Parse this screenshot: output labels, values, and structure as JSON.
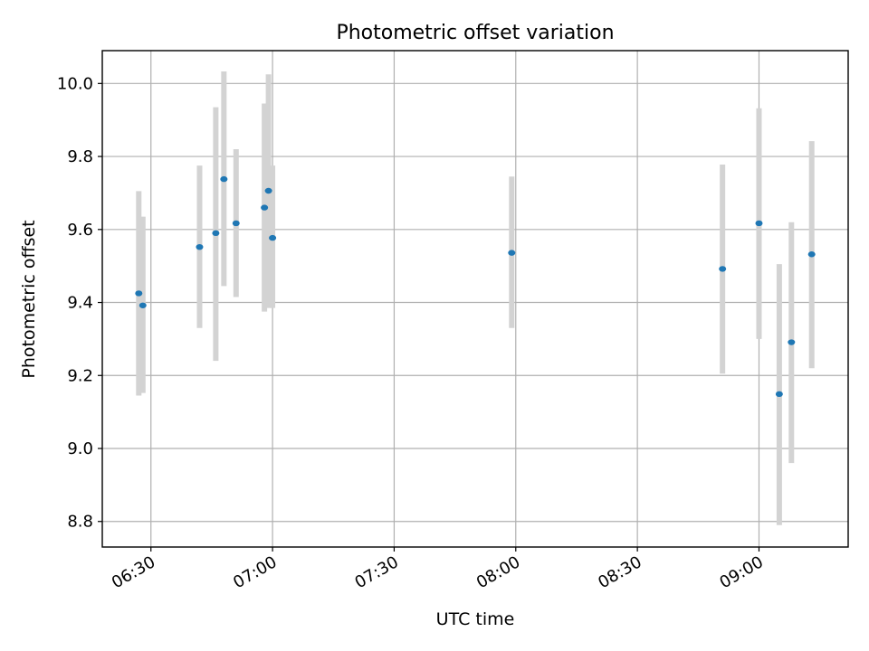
{
  "chart_data": {
    "type": "scatter",
    "title": "Photometric offset variation",
    "xlabel": "UTC time",
    "ylabel": "Photometric offset",
    "xlim": [
      "06:18",
      "09:22"
    ],
    "ylim": [
      8.73,
      10.09
    ],
    "x_ticks": [
      "06:30",
      "07:00",
      "07:30",
      "08:00",
      "08:30",
      "09:00"
    ],
    "y_ticks": [
      "8.8",
      "9.0",
      "9.2",
      "9.4",
      "9.6",
      "9.8",
      "10.0"
    ],
    "grid": true,
    "colors": {
      "point": "#1f77b4",
      "errorbar": "#d3d3d3"
    },
    "points": [
      {
        "time": "06:27",
        "y": 9.425,
        "err_low": 9.145,
        "err_high": 9.705
      },
      {
        "time": "06:28",
        "y": 9.392,
        "err_low": 9.152,
        "err_high": 9.635
      },
      {
        "time": "06:42",
        "y": 9.552,
        "err_low": 9.33,
        "err_high": 9.775
      },
      {
        "time": "06:46",
        "y": 9.59,
        "err_low": 9.24,
        "err_high": 9.935
      },
      {
        "time": "06:48",
        "y": 9.738,
        "err_low": 9.445,
        "err_high": 10.033
      },
      {
        "time": "06:51",
        "y": 9.617,
        "err_low": 9.415,
        "err_high": 9.82
      },
      {
        "time": "06:58",
        "y": 9.66,
        "err_low": 9.375,
        "err_high": 9.945
      },
      {
        "time": "06:59",
        "y": 9.706,
        "err_low": 9.385,
        "err_high": 10.025
      },
      {
        "time": "07:00",
        "y": 9.577,
        "err_low": 9.385,
        "err_high": 9.775
      },
      {
        "time": "07:59",
        "y": 9.536,
        "err_low": 9.33,
        "err_high": 9.745
      },
      {
        "time": "08:51",
        "y": 9.492,
        "err_low": 9.205,
        "err_high": 9.778
      },
      {
        "time": "09:00",
        "y": 9.617,
        "err_low": 9.3,
        "err_high": 9.932
      },
      {
        "time": "09:05",
        "y": 9.149,
        "err_low": 8.79,
        "err_high": 9.505
      },
      {
        "time": "09:08",
        "y": 9.291,
        "err_low": 8.96,
        "err_high": 9.62
      },
      {
        "time": "09:13",
        "y": 9.532,
        "err_low": 9.22,
        "err_high": 9.842
      }
    ]
  }
}
